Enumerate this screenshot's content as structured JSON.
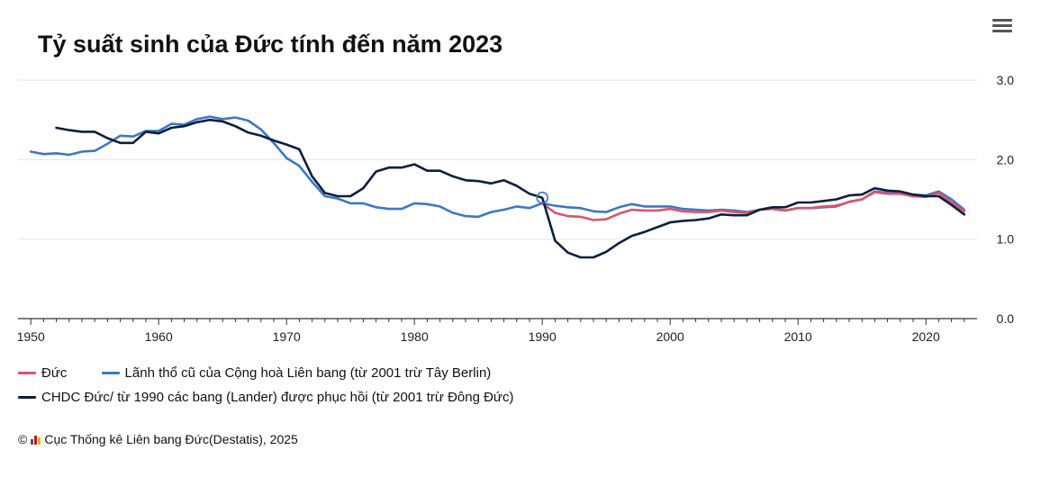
{
  "header": {
    "title": "Tỷ suất sinh của Đức tính đến năm 2023"
  },
  "menu": {
    "icon": "hamburger-menu-icon"
  },
  "colors": {
    "germany": "#e0526a",
    "west": "#3c78c8",
    "east": "#0c1f3d",
    "grid": "#e6e6e6",
    "axis": "#333333"
  },
  "legend": {
    "germany": "Đức",
    "west": "Lãnh thổ cũ của Cộng hoà Liên bang (từ 2001 trừ Tây Berlin)",
    "east": "CHDC Đức/ từ 1990 các bang (Lander) được phục hồi (từ 2001 trừ Đông Đức)"
  },
  "source": {
    "copyright": "©",
    "text": "Cục Thống kê Liên bang Đức(Destatis), 2025"
  },
  "chart_data": {
    "type": "line",
    "title": "Tỷ suất sinh của Đức tính đến năm 2023",
    "xlabel": "",
    "ylabel": "",
    "xlim": [
      1949,
      2024
    ],
    "ylim": [
      0,
      3
    ],
    "x_ticks": [
      1950,
      1960,
      1970,
      1980,
      1990,
      2000,
      2010,
      2020
    ],
    "y_ticks": [
      0.0,
      1.0,
      2.0,
      3.0
    ],
    "y_tick_labels": [
      "0.0",
      "1.0",
      "2.0",
      "3.0"
    ],
    "grid": "horizontal",
    "legend_position": "bottom-left",
    "series": [
      {
        "name": "Lãnh thổ cũ của Cộng hoà Liên bang (từ 2001 trừ Tây Berlin)",
        "key": "west",
        "x": [
          1950,
          1951,
          1952,
          1953,
          1954,
          1955,
          1956,
          1957,
          1958,
          1959,
          1960,
          1961,
          1962,
          1963,
          1964,
          1965,
          1966,
          1967,
          1968,
          1969,
          1970,
          1971,
          1972,
          1973,
          1974,
          1975,
          1976,
          1977,
          1978,
          1979,
          1980,
          1981,
          1982,
          1983,
          1984,
          1985,
          1986,
          1987,
          1988,
          1989,
          1990,
          1991,
          1992,
          1993,
          1994,
          1995,
          1996,
          1997,
          1998,
          1999,
          2000,
          2001,
          2002,
          2003,
          2004,
          2005,
          2006,
          2007,
          2008,
          2009,
          2010,
          2011,
          2012,
          2013,
          2014,
          2015,
          2016,
          2017,
          2018,
          2019,
          2020,
          2021,
          2022,
          2023
        ],
        "values": [
          2.1,
          2.07,
          2.08,
          2.06,
          2.1,
          2.11,
          2.2,
          2.3,
          2.29,
          2.36,
          2.36,
          2.45,
          2.44,
          2.51,
          2.54,
          2.51,
          2.53,
          2.49,
          2.38,
          2.21,
          2.02,
          1.92,
          1.72,
          1.54,
          1.51,
          1.45,
          1.45,
          1.4,
          1.38,
          1.38,
          1.45,
          1.44,
          1.41,
          1.33,
          1.29,
          1.28,
          1.34,
          1.37,
          1.41,
          1.39,
          1.45,
          1.42,
          1.4,
          1.39,
          1.35,
          1.34,
          1.4,
          1.44,
          1.41,
          1.41,
          1.41,
          1.38,
          1.37,
          1.36,
          1.37,
          1.36,
          1.34,
          1.37,
          1.38,
          1.36,
          1.39,
          1.39,
          1.4,
          1.41,
          1.47,
          1.5,
          1.6,
          1.58,
          1.58,
          1.56,
          1.55,
          1.6,
          1.5,
          1.37
        ]
      },
      {
        "name": "Đức",
        "key": "germany",
        "x": [
          1990,
          1991,
          1992,
          1993,
          1994,
          1995,
          1996,
          1997,
          1998,
          1999,
          2000,
          2001,
          2002,
          2003,
          2004,
          2005,
          2006,
          2007,
          2008,
          2009,
          2010,
          2011,
          2012,
          2013,
          2014,
          2015,
          2016,
          2017,
          2018,
          2019,
          2020,
          2021,
          2022,
          2023
        ],
        "values": [
          1.45,
          1.33,
          1.29,
          1.28,
          1.24,
          1.25,
          1.32,
          1.37,
          1.36,
          1.36,
          1.38,
          1.35,
          1.34,
          1.34,
          1.36,
          1.34,
          1.33,
          1.37,
          1.38,
          1.36,
          1.39,
          1.39,
          1.41,
          1.42,
          1.47,
          1.5,
          1.59,
          1.57,
          1.57,
          1.54,
          1.53,
          1.58,
          1.46,
          1.35
        ]
      },
      {
        "name": "CHDC Đức/ từ 1990 các bang (Lander) được phục hồi (từ 2001 trừ Đông Đức)",
        "key": "east",
        "x": [
          1952,
          1953,
          1954,
          1955,
          1956,
          1957,
          1958,
          1959,
          1960,
          1961,
          1962,
          1963,
          1964,
          1965,
          1966,
          1967,
          1968,
          1969,
          1970,
          1971,
          1972,
          1973,
          1974,
          1975,
          1976,
          1977,
          1978,
          1979,
          1980,
          1981,
          1982,
          1983,
          1984,
          1985,
          1986,
          1987,
          1988,
          1989,
          1990,
          1991,
          1992,
          1993,
          1994,
          1995,
          1996,
          1997,
          1998,
          1999,
          2000,
          2001,
          2002,
          2003,
          2004,
          2005,
          2006,
          2007,
          2008,
          2009,
          2010,
          2011,
          2012,
          2013,
          2014,
          2015,
          2016,
          2017,
          2018,
          2019,
          2020,
          2021,
          2022,
          2023
        ],
        "values": [
          2.4,
          2.37,
          2.35,
          2.35,
          2.27,
          2.21,
          2.21,
          2.35,
          2.33,
          2.4,
          2.42,
          2.47,
          2.5,
          2.48,
          2.42,
          2.34,
          2.3,
          2.24,
          2.19,
          2.13,
          1.79,
          1.58,
          1.54,
          1.54,
          1.64,
          1.85,
          1.9,
          1.9,
          1.94,
          1.86,
          1.86,
          1.79,
          1.74,
          1.73,
          1.7,
          1.74,
          1.67,
          1.57,
          1.52,
          0.98,
          0.83,
          0.77,
          0.77,
          0.84,
          0.95,
          1.04,
          1.09,
          1.15,
          1.21,
          1.23,
          1.24,
          1.26,
          1.31,
          1.3,
          1.3,
          1.37,
          1.4,
          1.4,
          1.46,
          1.46,
          1.48,
          1.5,
          1.55,
          1.56,
          1.64,
          1.61,
          1.6,
          1.56,
          1.54,
          1.54,
          1.43,
          1.31
        ]
      }
    ]
  }
}
